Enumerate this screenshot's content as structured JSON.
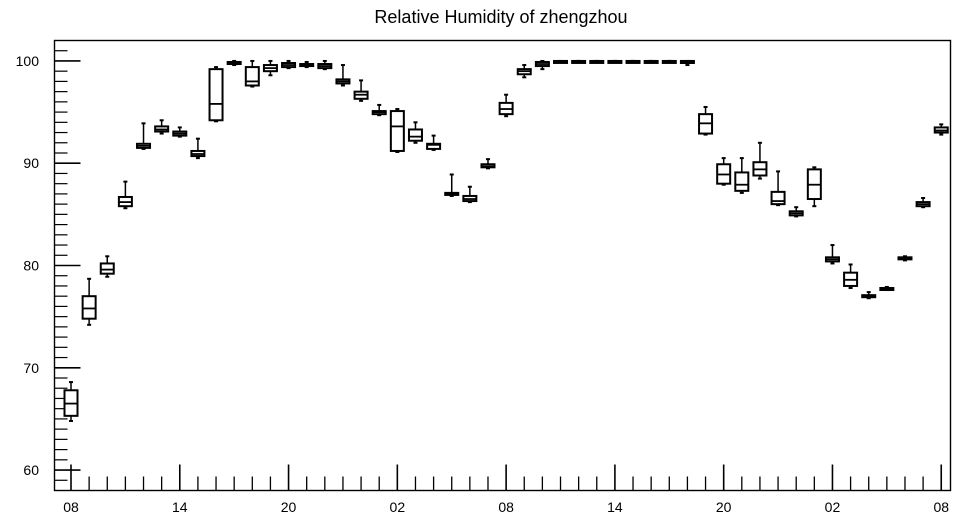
{
  "chart_data": {
    "type": "box",
    "title": "Relative Humidity of zhengzhou",
    "xlabel": "",
    "ylabel": "",
    "ylim": [
      58,
      102
    ],
    "x_tick_labels": [
      "08",
      "14",
      "20",
      "02",
      "08",
      "14",
      "20",
      "02",
      "08"
    ],
    "y_ticks": [
      60,
      70,
      80,
      90,
      100
    ],
    "grid": false,
    "hours_start": 8,
    "boxes": [
      {
        "hour": 8,
        "whisker_low": 64.8,
        "q1": 65.3,
        "median": 66.5,
        "q3": 67.8,
        "whisker_high": 68.6
      },
      {
        "hour": 9,
        "whisker_low": 74.2,
        "q1": 74.8,
        "median": 75.8,
        "q3": 77.0,
        "whisker_high": 78.7
      },
      {
        "hour": 10,
        "whisker_low": 78.9,
        "q1": 79.2,
        "median": 79.6,
        "q3": 80.2,
        "whisker_high": 80.9
      },
      {
        "hour": 11,
        "whisker_low": 85.6,
        "q1": 85.8,
        "median": 86.2,
        "q3": 86.7,
        "whisker_high": 88.2
      },
      {
        "hour": 12,
        "whisker_low": 91.4,
        "q1": 91.5,
        "median": 91.7,
        "q3": 91.9,
        "whisker_high": 93.9
      },
      {
        "hour": 13,
        "whisker_low": 92.9,
        "q1": 93.1,
        "median": 93.3,
        "q3": 93.6,
        "whisker_high": 94.2
      },
      {
        "hour": 14,
        "whisker_low": 92.6,
        "q1": 92.7,
        "median": 92.9,
        "q3": 93.1,
        "whisker_high": 93.5
      },
      {
        "hour": 15,
        "whisker_low": 90.5,
        "q1": 90.7,
        "median": 90.9,
        "q3": 91.2,
        "whisker_high": 92.4
      },
      {
        "hour": 16,
        "whisker_low": 94.1,
        "q1": 94.2,
        "median": 95.8,
        "q3": 99.2,
        "whisker_high": 99.4
      },
      {
        "hour": 17,
        "whisker_low": 99.6,
        "q1": 99.7,
        "median": 99.8,
        "q3": 99.9,
        "whisker_high": 100.0
      },
      {
        "hour": 18,
        "whisker_low": 97.5,
        "q1": 97.6,
        "median": 98.0,
        "q3": 99.4,
        "whisker_high": 100.0
      },
      {
        "hour": 19,
        "whisker_low": 98.6,
        "q1": 99.0,
        "median": 99.3,
        "q3": 99.6,
        "whisker_high": 100.0
      },
      {
        "hour": 20,
        "whisker_low": 99.3,
        "q1": 99.4,
        "median": 99.6,
        "q3": 99.8,
        "whisker_high": 100.0
      },
      {
        "hour": 21,
        "whisker_low": 99.4,
        "q1": 99.5,
        "median": 99.6,
        "q3": 99.7,
        "whisker_high": 99.9
      },
      {
        "hour": 22,
        "whisker_low": 99.2,
        "q1": 99.3,
        "median": 99.5,
        "q3": 99.7,
        "whisker_high": 100.0
      },
      {
        "hour": 23,
        "whisker_low": 97.6,
        "q1": 97.8,
        "median": 98.0,
        "q3": 98.2,
        "whisker_high": 99.6
      },
      {
        "hour": 0,
        "whisker_low": 96.1,
        "q1": 96.3,
        "median": 96.7,
        "q3": 97.0,
        "whisker_high": 98.1
      },
      {
        "hour": 1,
        "whisker_low": 94.7,
        "q1": 94.8,
        "median": 95.0,
        "q3": 95.1,
        "whisker_high": 95.7
      },
      {
        "hour": 2,
        "whisker_low": 91.1,
        "q1": 91.2,
        "median": 93.6,
        "q3": 95.1,
        "whisker_high": 95.3
      },
      {
        "hour": 3,
        "whisker_low": 92.0,
        "q1": 92.2,
        "median": 92.6,
        "q3": 93.3,
        "whisker_high": 94.0
      },
      {
        "hour": 4,
        "whisker_low": 91.3,
        "q1": 91.4,
        "median": 91.8,
        "q3": 91.9,
        "whisker_high": 92.7
      },
      {
        "hour": 5,
        "whisker_low": 86.8,
        "q1": 86.9,
        "median": 87.0,
        "q3": 87.1,
        "whisker_high": 88.9
      },
      {
        "hour": 6,
        "whisker_low": 86.2,
        "q1": 86.3,
        "median": 86.5,
        "q3": 86.8,
        "whisker_high": 87.7
      },
      {
        "hour": 7,
        "whisker_low": 89.5,
        "q1": 89.6,
        "median": 89.7,
        "q3": 89.9,
        "whisker_high": 90.4
      },
      {
        "hour": 8,
        "whisker_low": 94.6,
        "q1": 94.8,
        "median": 95.3,
        "q3": 95.9,
        "whisker_high": 96.7
      },
      {
        "hour": 9,
        "whisker_low": 98.4,
        "q1": 98.7,
        "median": 99.0,
        "q3": 99.2,
        "whisker_high": 99.6
      },
      {
        "hour": 10,
        "whisker_low": 99.2,
        "q1": 99.5,
        "median": 99.7,
        "q3": 99.9,
        "whisker_high": 100.0
      },
      {
        "hour": 11,
        "whisker_low": 99.9,
        "q1": 99.9,
        "median": 100.0,
        "q3": 100.0,
        "whisker_high": 100.0
      },
      {
        "hour": 12,
        "whisker_low": 100.0,
        "q1": 100.0,
        "median": 100.0,
        "q3": 100.0,
        "whisker_high": 100.0
      },
      {
        "hour": 13,
        "whisker_low": 100.0,
        "q1": 100.0,
        "median": 100.0,
        "q3": 100.0,
        "whisker_high": 100.0
      },
      {
        "hour": 14,
        "whisker_low": 100.0,
        "q1": 100.0,
        "median": 100.0,
        "q3": 100.0,
        "whisker_high": 100.0
      },
      {
        "hour": 15,
        "whisker_low": 100.0,
        "q1": 100.0,
        "median": 100.0,
        "q3": 100.0,
        "whisker_high": 100.0
      },
      {
        "hour": 16,
        "whisker_low": 100.0,
        "q1": 100.0,
        "median": 100.0,
        "q3": 100.0,
        "whisker_high": 100.0
      },
      {
        "hour": 17,
        "whisker_low": 100.0,
        "q1": 100.0,
        "median": 100.0,
        "q3": 100.0,
        "whisker_high": 100.0
      },
      {
        "hour": 18,
        "whisker_low": 99.6,
        "q1": 99.8,
        "median": 99.9,
        "q3": 100.0,
        "whisker_high": 100.0
      },
      {
        "hour": 19,
        "whisker_low": 92.8,
        "q1": 92.9,
        "median": 93.9,
        "q3": 94.8,
        "whisker_high": 95.5
      },
      {
        "hour": 20,
        "whisker_low": 87.9,
        "q1": 88.0,
        "median": 88.9,
        "q3": 89.9,
        "whisker_high": 90.5
      },
      {
        "hour": 21,
        "whisker_low": 87.1,
        "q1": 87.3,
        "median": 87.9,
        "q3": 89.1,
        "whisker_high": 90.5
      },
      {
        "hour": 22,
        "whisker_low": 88.5,
        "q1": 88.8,
        "median": 89.4,
        "q3": 90.1,
        "whisker_high": 92.0
      },
      {
        "hour": 23,
        "whisker_low": 85.9,
        "q1": 86.0,
        "median": 86.3,
        "q3": 87.2,
        "whisker_high": 89.2
      },
      {
        "hour": 0,
        "whisker_low": 84.8,
        "q1": 84.9,
        "median": 85.1,
        "q3": 85.3,
        "whisker_high": 85.7
      },
      {
        "hour": 1,
        "whisker_low": 85.8,
        "q1": 86.5,
        "median": 87.9,
        "q3": 89.4,
        "whisker_high": 89.6
      },
      {
        "hour": 2,
        "whisker_low": 80.2,
        "q1": 80.4,
        "median": 80.6,
        "q3": 80.8,
        "whisker_high": 82.0
      },
      {
        "hour": 3,
        "whisker_low": 77.8,
        "q1": 78.0,
        "median": 78.6,
        "q3": 79.3,
        "whisker_high": 80.1
      },
      {
        "hour": 4,
        "whisker_low": 76.8,
        "q1": 76.9,
        "median": 77.0,
        "q3": 77.1,
        "whisker_high": 77.4
      },
      {
        "hour": 5,
        "whisker_low": 77.6,
        "q1": 77.7,
        "median": 77.8,
        "q3": 77.8,
        "whisker_high": 77.9
      },
      {
        "hour": 6,
        "whisker_low": 80.5,
        "q1": 80.6,
        "median": 80.7,
        "q3": 80.8,
        "whisker_high": 80.9
      },
      {
        "hour": 7,
        "whisker_low": 85.7,
        "q1": 85.8,
        "median": 86.0,
        "q3": 86.2,
        "whisker_high": 86.6
      },
      {
        "hour": 8,
        "whisker_low": 92.8,
        "q1": 93.0,
        "median": 93.2,
        "q3": 93.5,
        "whisker_high": 93.8
      }
    ]
  }
}
